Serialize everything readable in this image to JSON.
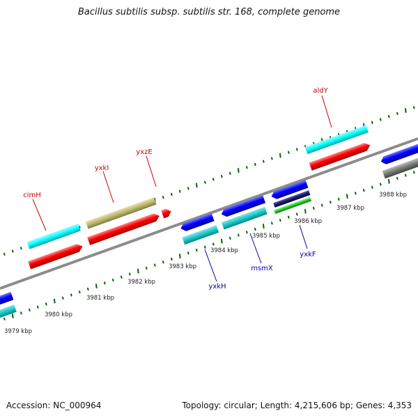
{
  "title": "Bacillus subtilis subsp. subtilis str. 168, complete genome",
  "footer": {
    "accession": "Accession: NC_000964",
    "topology": "Topology: circular; Length: 4,215,606 bp; Genes: 4,353"
  },
  "colors": {
    "cds_forward": "#ff0000",
    "gene_forward": "#00ffff",
    "other_forward": "#bdb76b",
    "cds_reverse": "#0000ff",
    "gene_reverse": "#00cccc",
    "rna": "#00cc00",
    "misc": "#666666",
    "backbone": "#8c8c8c",
    "tick": "#006400",
    "label_forward": "#cc0000",
    "label_reverse": "#0000aa"
  },
  "kbp_labels": [
    "3979 kbp",
    "3980 kbp",
    "3981 kbp",
    "3982 kbp",
    "3983 kbp",
    "3984 kbp",
    "3985 kbp",
    "3986 kbp",
    "3987 kbp",
    "3988 kbp"
  ],
  "gene_labels_forward": [
    "cimH",
    "yxkI",
    "yxzE",
    "aldY"
  ],
  "gene_labels_reverse": [
    "yxkH",
    "msmX",
    "yxkF"
  ]
}
